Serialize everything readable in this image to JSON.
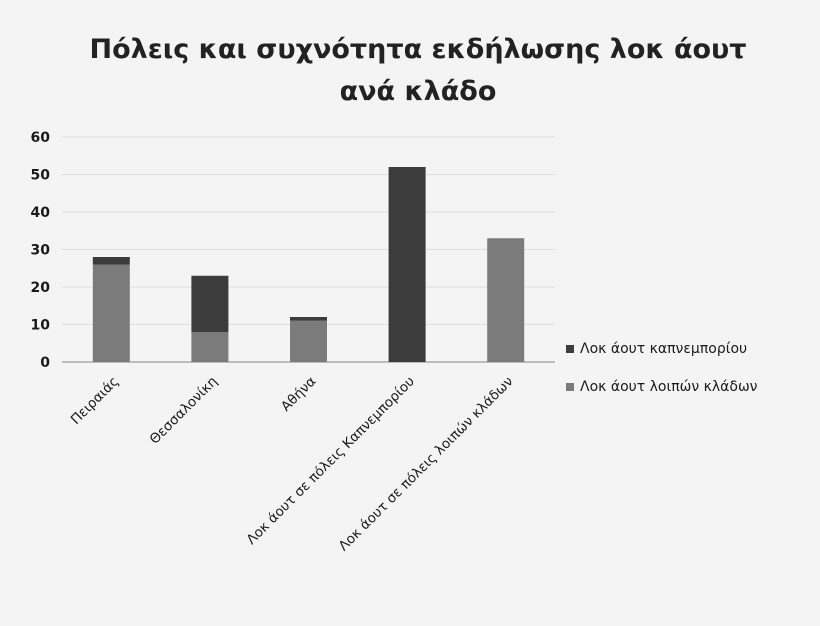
{
  "chart_data": {
    "type": "bar",
    "stacked": true,
    "title_lines": [
      "Πόλεις και συχνότητα εκδήλωσης λοκ άουτ",
      "ανά κλάδο"
    ],
    "categories": [
      "Πειραιάς",
      "Θεσσαλονίκη",
      "Αθήνα",
      "Λοκ άουτ σε πόλεις Καπνεμπορίου",
      "Λοκ άουτ σε πόλεις λοιπών κλάδων"
    ],
    "series": [
      {
        "name": "Λοκ άουτ λοιπών κλάδων",
        "values": [
          26,
          8,
          11,
          0,
          33
        ],
        "color": "#7b7b7b"
      },
      {
        "name": "Λοκ άουτ καπνεμπορίου",
        "values": [
          2,
          15,
          1,
          52,
          0
        ],
        "color": "#3c3c3c"
      }
    ],
    "legend_order": [
      1,
      0
    ],
    "ylim": [
      0,
      60
    ],
    "yticks": [
      0,
      10,
      20,
      30,
      40,
      50,
      60
    ],
    "grid": true,
    "legend_position": "right"
  }
}
